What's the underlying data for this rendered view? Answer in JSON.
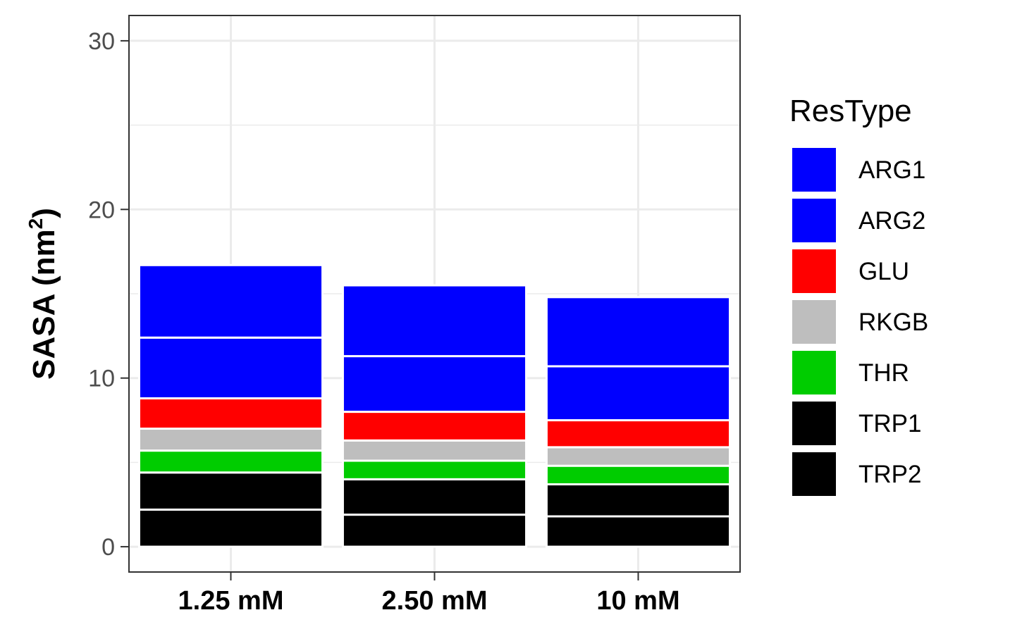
{
  "chart_data": {
    "type": "bar",
    "stacked": true,
    "categories": [
      "1.25 mM",
      "2.50 mM",
      "10 mM"
    ],
    "series": [
      {
        "name": "TRP2",
        "color": "#000000",
        "values": [
          2.2,
          1.9,
          1.8
        ]
      },
      {
        "name": "TRP1",
        "color": "#000000",
        "values": [
          2.2,
          2.1,
          1.9
        ]
      },
      {
        "name": "THR",
        "color": "#00cc00",
        "values": [
          1.3,
          1.1,
          1.1
        ]
      },
      {
        "name": "RKGB",
        "color": "#bebebe",
        "values": [
          1.3,
          1.2,
          1.1
        ]
      },
      {
        "name": "GLU",
        "color": "#ff0000",
        "values": [
          1.8,
          1.7,
          1.6
        ]
      },
      {
        "name": "ARG2",
        "color": "#0000ff",
        "values": [
          3.6,
          3.3,
          3.2
        ]
      },
      {
        "name": "ARG1",
        "color": "#0000ff",
        "values": [
          4.3,
          4.2,
          4.1
        ]
      }
    ],
    "xlabel": "",
    "ylabel": "SASA (nm",
    "ylabel_superscript": "2",
    "ylabel_close": ")",
    "ylim": [
      -1.5,
      31.5
    ],
    "yticks": [
      0,
      10,
      20,
      30
    ],
    "ytick_labels": [
      "0",
      "10",
      "20",
      "30"
    ],
    "minor_yticks": [
      5,
      15,
      25
    ],
    "grid": true,
    "legend": {
      "title": "ResType",
      "position": "right",
      "items": [
        {
          "label": "ARG1",
          "color": "#0000ff"
        },
        {
          "label": "ARG2",
          "color": "#0000ff"
        },
        {
          "label": "GLU",
          "color": "#ff0000"
        },
        {
          "label": "RKGB",
          "color": "#bebebe"
        },
        {
          "label": "THR",
          "color": "#00cc00"
        },
        {
          "label": "TRP1",
          "color": "#000000"
        },
        {
          "label": "TRP2",
          "color": "#000000"
        }
      ]
    }
  }
}
